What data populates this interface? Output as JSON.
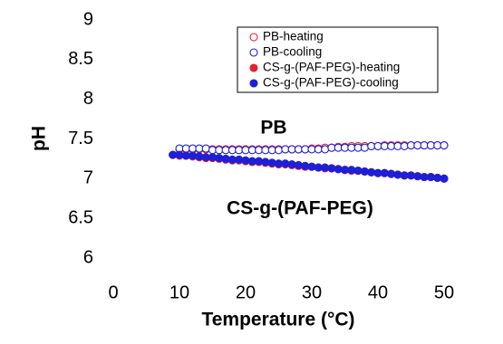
{
  "chart_data": {
    "type": "scatter",
    "xlabel": "Temperature (°C)",
    "ylabel": "pH",
    "xlim": [
      0,
      50
    ],
    "xticks": [
      0,
      10,
      20,
      30,
      40,
      50
    ],
    "ylim": [
      6,
      9
    ],
    "yticks": [
      6,
      6.5,
      7,
      7.5,
      8,
      8.5,
      9
    ],
    "legend": "upper right",
    "annotations": [
      "PB",
      "CS-g-(PAF-PEG)"
    ],
    "series": [
      {
        "name": "PB-heating",
        "color": "#e3242b",
        "marker": "open",
        "x": [
          10,
          11,
          12,
          13,
          14,
          15,
          16,
          17,
          18,
          19,
          20,
          21,
          22,
          23,
          24,
          25,
          26,
          27,
          28,
          29,
          30,
          31,
          32,
          33,
          34,
          35,
          36,
          37,
          38,
          39,
          40,
          41,
          42,
          43,
          44,
          45,
          46,
          47,
          48,
          49,
          50
        ],
        "values": [
          7.37,
          7.37,
          7.37,
          7.37,
          7.37,
          7.37,
          7.37,
          7.37,
          7.37,
          7.37,
          7.37,
          7.37,
          7.37,
          7.37,
          7.37,
          7.37,
          7.37,
          7.37,
          7.37,
          7.37,
          7.38,
          7.38,
          7.39,
          7.39,
          7.4,
          7.4,
          7.41,
          7.41,
          7.41,
          7.41,
          7.41,
          7.42,
          7.42,
          7.42,
          7.42,
          7.42,
          7.42,
          7.42,
          7.42,
          7.42,
          7.42
        ]
      },
      {
        "name": "PB-cooling",
        "color": "#1f1fd6",
        "marker": "open",
        "x": [
          10,
          11,
          12,
          13,
          14,
          15,
          16,
          17,
          18,
          19,
          20,
          21,
          22,
          23,
          24,
          25,
          26,
          27,
          28,
          29,
          30,
          31,
          32,
          33,
          34,
          35,
          36,
          37,
          38,
          39,
          40,
          41,
          42,
          43,
          44,
          45,
          46,
          47,
          48,
          49,
          50
        ],
        "values": [
          7.38,
          7.38,
          7.38,
          7.38,
          7.38,
          7.36,
          7.36,
          7.36,
          7.36,
          7.36,
          7.36,
          7.36,
          7.36,
          7.36,
          7.36,
          7.36,
          7.37,
          7.37,
          7.37,
          7.37,
          7.37,
          7.37,
          7.37,
          7.39,
          7.39,
          7.39,
          7.39,
          7.39,
          7.39,
          7.41,
          7.41,
          7.41,
          7.41,
          7.41,
          7.41,
          7.42,
          7.42,
          7.42,
          7.42,
          7.42,
          7.42
        ]
      },
      {
        "name": "CS-g-(PAF-PEG)-heating",
        "color": "#e3242b",
        "marker": "filled",
        "x": [
          9,
          10,
          11,
          12,
          13,
          14,
          15,
          16,
          17,
          18,
          19,
          20,
          21,
          22,
          23,
          24,
          25,
          26,
          27,
          28,
          29,
          30,
          31,
          32,
          33,
          34,
          35,
          36,
          37,
          38,
          39,
          40,
          41,
          42,
          43,
          44,
          45,
          46,
          47,
          48,
          49,
          50
        ],
        "values": [
          7.3,
          7.29,
          7.29,
          7.28,
          7.27,
          7.26,
          7.26,
          7.25,
          7.24,
          7.23,
          7.23,
          7.22,
          7.21,
          7.21,
          7.2,
          7.19,
          7.18,
          7.18,
          7.17,
          7.16,
          7.15,
          7.15,
          7.14,
          7.13,
          7.13,
          7.12,
          7.11,
          7.1,
          7.1,
          7.09,
          7.08,
          7.07,
          7.07,
          7.06,
          7.05,
          7.04,
          7.04,
          7.03,
          7.02,
          7.02,
          7.01,
          7.0
        ]
      },
      {
        "name": "CS-g-(PAF-PEG)-cooling",
        "color": "#1f1fd6",
        "marker": "filled",
        "x": [
          9,
          10,
          11,
          12,
          13,
          14,
          15,
          16,
          17,
          18,
          19,
          20,
          21,
          22,
          23,
          24,
          25,
          26,
          27,
          28,
          29,
          30,
          31,
          32,
          33,
          34,
          35,
          36,
          37,
          38,
          39,
          40,
          41,
          42,
          43,
          44,
          45,
          46,
          47,
          48,
          49,
          50
        ],
        "values": [
          7.3,
          7.3,
          7.29,
          7.29,
          7.28,
          7.27,
          7.27,
          7.26,
          7.25,
          7.24,
          7.24,
          7.23,
          7.22,
          7.22,
          7.21,
          7.2,
          7.19,
          7.19,
          7.18,
          7.17,
          7.16,
          7.15,
          7.14,
          7.14,
          7.13,
          7.12,
          7.11,
          7.11,
          7.1,
          7.09,
          7.08,
          7.07,
          7.07,
          7.06,
          7.05,
          7.04,
          7.04,
          7.03,
          7.02,
          7.02,
          7.01,
          7.0
        ]
      }
    ]
  }
}
